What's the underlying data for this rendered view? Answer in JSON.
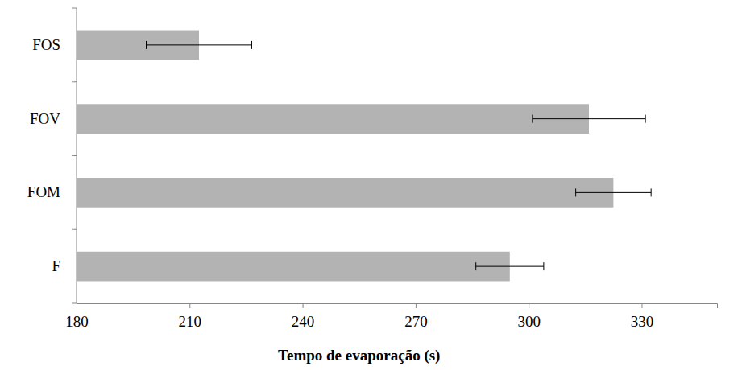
{
  "chart_data": {
    "type": "bar",
    "orientation": "horizontal",
    "categories": [
      "F",
      "FOM",
      "FOV",
      "FOS"
    ],
    "values": [
      295,
      322.5,
      316,
      212.5
    ],
    "errors": [
      9,
      10,
      15,
      14
    ],
    "color": "#b3b3b3",
    "x_label": "Tempo de evaporação (s)",
    "xlim": [
      180,
      350
    ],
    "xticks": [
      180,
      210,
      240,
      270,
      300,
      330
    ],
    "grid": false
  }
}
